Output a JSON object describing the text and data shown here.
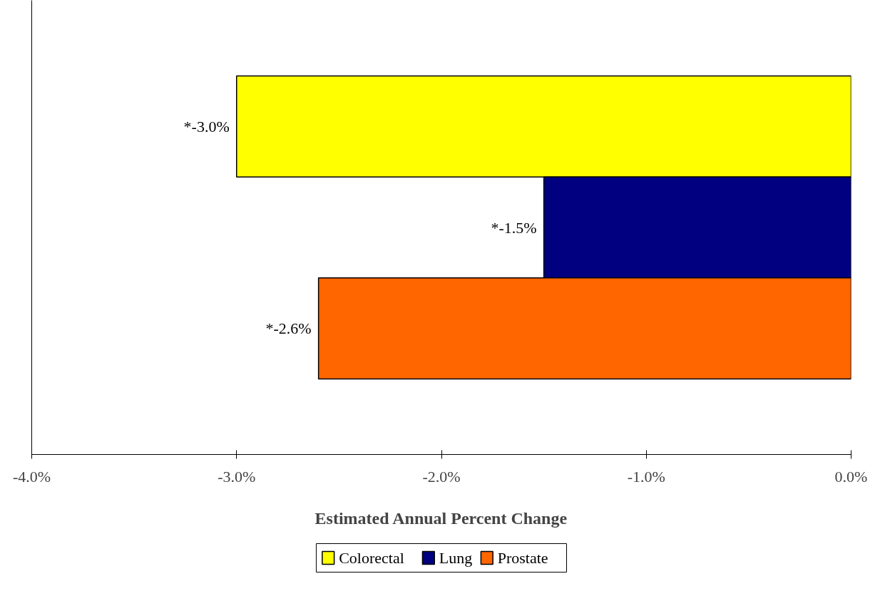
{
  "chart_data": {
    "type": "bar",
    "orientation": "horizontal",
    "categories": [
      null
    ],
    "series": [
      {
        "name": "Colorectal",
        "color": "#ffff00",
        "values": [
          -3.0
        ],
        "value_labels": [
          "*-3.0%"
        ]
      },
      {
        "name": "Lung",
        "color": "#000080",
        "values": [
          -1.5
        ],
        "value_labels": [
          "*-1.5%"
        ]
      },
      {
        "name": "Prostate",
        "color": "#ff6600",
        "values": [
          -2.6
        ],
        "value_labels": [
          "*-2.6%"
        ]
      }
    ],
    "xlim": [
      -4,
      0
    ],
    "xticks": [
      {
        "value": -4,
        "label": "-4.0%"
      },
      {
        "value": -3,
        "label": "-3.0%"
      },
      {
        "value": -2,
        "label": "-2.0%"
      },
      {
        "value": -1,
        "label": "-1.0%"
      },
      {
        "value": 0,
        "label": "0.0%"
      }
    ],
    "xlabel": "Estimated Annual Percent Change",
    "legend": "bottom",
    "grid": false
  }
}
